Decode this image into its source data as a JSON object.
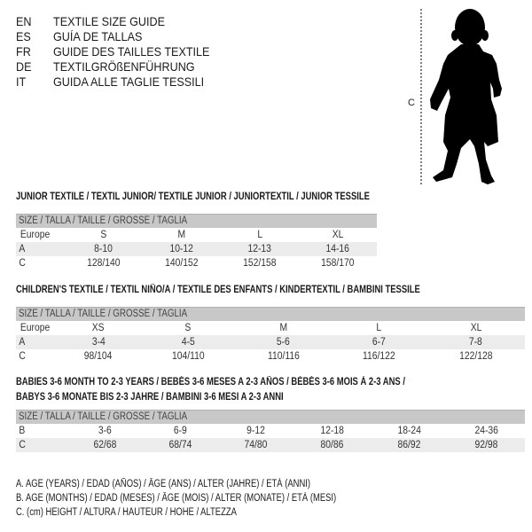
{
  "languages": [
    {
      "code": "EN",
      "title": "TEXTILE SIZE GUIDE"
    },
    {
      "code": "ES",
      "title": "GUÍA DE TALLAS"
    },
    {
      "code": "FR",
      "title": "GUIDE DES TAILLES TEXTILE"
    },
    {
      "code": "DE",
      "title": "TEXTILGRÖßENFÜHRUNG"
    },
    {
      "code": "IT",
      "title": "GUIDA ALLE TAGLIE TESSILI"
    }
  ],
  "figure": {
    "measure_label": "C",
    "icon": "child-silhouette"
  },
  "size_header": "SIZE / TALLA / TAILLE / GRÖSSE / TAGLIA",
  "junior": {
    "title": "JUNIOR TEXTILE / TEXTIL JUNIOR/ TEXTILE JUNIOR / JUNIORTEXTIL / JUNIOR TESSILE",
    "rows": [
      {
        "label": "Europe",
        "values": [
          "S",
          "M",
          "L",
          "XL"
        ]
      },
      {
        "label": "A",
        "values": [
          "8-10",
          "10-12",
          "12-13",
          "14-16"
        ]
      },
      {
        "label": "C",
        "values": [
          "128/140",
          "140/152",
          "152/158",
          "158/170"
        ]
      }
    ]
  },
  "children": {
    "title": "CHILDREN'S TEXTILE / TEXTIL NIÑO/A / TEXTILE DES ENFANTS / KINDERTEXTIL / BAMBINI TESSILE",
    "rows": [
      {
        "label": "Europe",
        "values": [
          "XS",
          "S",
          "M",
          "L",
          "XL"
        ]
      },
      {
        "label": "A",
        "values": [
          "3-4",
          "4-5",
          "5-6",
          "6-7",
          "7-8"
        ]
      },
      {
        "label": "C",
        "values": [
          "98/104",
          "104/110",
          "110/116",
          "116/122",
          "122/128"
        ]
      }
    ]
  },
  "babies": {
    "title_line1": "BABIES 3-6 MONTH TO 2-3 YEARS / BEBÉS 3-6 MESES A 2-3 AÑOS / BÉBÉS 3-6 MOIS À 2-3 ANS /",
    "title_line2": "BABYS 3-6 MONATE BIS 2-3 JAHRE / BAMBINI 3-6 MESI A 2-3 ANNI",
    "rows": [
      {
        "label": "B",
        "values": [
          "3-6",
          "6-9",
          "9-12",
          "12-18",
          "18-24",
          "24-36"
        ]
      },
      {
        "label": "C",
        "values": [
          "62/68",
          "68/74",
          "74/80",
          "80/86",
          "86/92",
          "92/98"
        ]
      }
    ]
  },
  "legend": [
    "A. AGE (YEARS) / EDAD (AÑOS) / ÂGE (ANS) / ALTER (JAHRE) / ETÀ (ANNI)",
    "B. AGE (MONTHS) / EDAD (MESES) / ÂGE (MOIS) / ALTER (MONATE) / ETÀ (MESI)",
    "C. (cm) HEIGHT / ALTURA / HAUTEUR / HÖHE / ALTEZZA"
  ]
}
